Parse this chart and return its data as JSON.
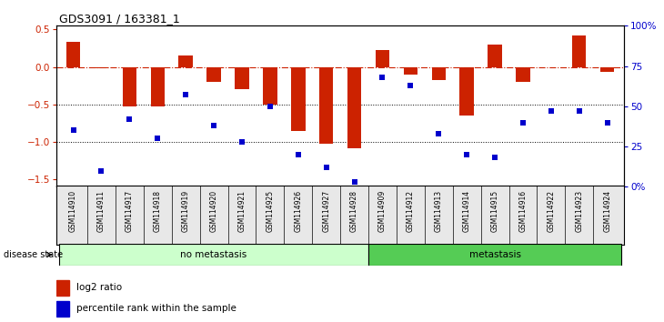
{
  "title": "GDS3091 / 163381_1",
  "samples": [
    "GSM114910",
    "GSM114911",
    "GSM114917",
    "GSM114918",
    "GSM114919",
    "GSM114920",
    "GSM114921",
    "GSM114925",
    "GSM114926",
    "GSM114927",
    "GSM114928",
    "GSM114909",
    "GSM114912",
    "GSM114913",
    "GSM114914",
    "GSM114915",
    "GSM114916",
    "GSM114922",
    "GSM114923",
    "GSM114924"
  ],
  "log2_ratio": [
    0.33,
    -0.02,
    -0.53,
    -0.53,
    0.15,
    -0.2,
    -0.3,
    -0.5,
    -0.85,
    -1.02,
    -1.08,
    0.22,
    -0.1,
    -0.18,
    -0.65,
    0.3,
    -0.2,
    0.0,
    0.42,
    -0.07
  ],
  "percentile_rank": [
    35,
    10,
    42,
    30,
    57,
    38,
    28,
    50,
    20,
    12,
    3,
    68,
    63,
    33,
    20,
    18,
    40,
    47,
    47,
    40
  ],
  "no_metastasis_count": 11,
  "metastasis_count": 9,
  "bar_color": "#cc2200",
  "dot_color": "#0000cc",
  "dashed_line_color": "#cc2200",
  "no_metastasis_color": "#ccffcc",
  "metastasis_color": "#55cc55",
  "ylim_left": [
    -1.6,
    0.55
  ],
  "ylim_right": [
    0,
    100
  ],
  "yticks_left": [
    -1.5,
    -1.0,
    -0.5,
    0.0,
    0.5
  ],
  "ytick_labels_right": [
    "0%",
    "25",
    "50",
    "75",
    "100%"
  ],
  "ytick_vals_right": [
    0,
    25,
    50,
    75,
    100
  ],
  "bar_width": 0.5
}
